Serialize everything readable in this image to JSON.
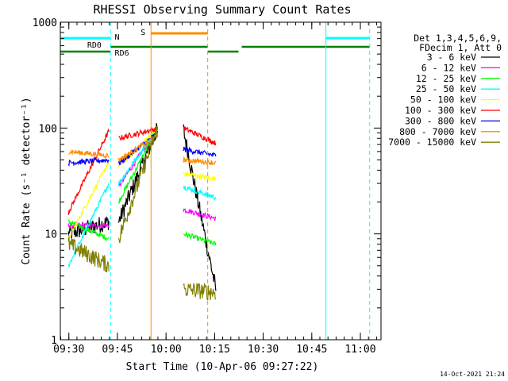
{
  "chart_data": {
    "type": "line",
    "title": "RHESSI Observing Summary Count Rates",
    "xlabel": "Start Time (10-Apr-06 09:27:22)",
    "ylabel": "Count Rate (s⁻¹ detector⁻¹)",
    "yscale": "log",
    "ylim": [
      1,
      1000
    ],
    "xlim_minutes": [
      0,
      99
    ],
    "x_ticks": [
      "09:30",
      "09:45",
      "10:00",
      "10:15",
      "10:30",
      "10:45",
      "11:00"
    ],
    "y_ticks": [
      "1",
      "10",
      "100",
      "1000"
    ],
    "legend_header": [
      "Det 1,3,4,5,6,9,",
      "FDecim 1, Att 0"
    ],
    "legend_position": "right",
    "footer_date": "14-Oct-2021 21:24",
    "series": [
      {
        "name": "3 - 6 keV",
        "color": "#000000",
        "points": [
          [
            2.5,
            10
          ],
          [
            15,
            13
          ],
          [
            18,
            13
          ],
          [
            30,
            99
          ],
          [
            38,
            96
          ],
          [
            48,
            3
          ]
        ]
      },
      {
        "name": "6 - 12 keV",
        "color": "#ff00ff",
        "points": [
          [
            2.5,
            12
          ],
          [
            15,
            12
          ],
          [
            18,
            28
          ],
          [
            30,
            99
          ],
          [
            38,
            17
          ],
          [
            48,
            14
          ]
        ]
      },
      {
        "name": "12 - 25 keV",
        "color": "#00ff00",
        "points": [
          [
            2.5,
            13
          ],
          [
            15,
            9
          ],
          [
            18,
            20
          ],
          [
            30,
            99
          ],
          [
            38,
            10
          ],
          [
            48,
            8
          ]
        ]
      },
      {
        "name": "25 - 50 keV",
        "color": "#00ffff",
        "points": [
          [
            2.5,
            5
          ],
          [
            15,
            30
          ],
          [
            18,
            30
          ],
          [
            30,
            99
          ],
          [
            38,
            28
          ],
          [
            48,
            22
          ]
        ]
      },
      {
        "name": "50 - 100 keV",
        "color": "#ffff00",
        "points": [
          [
            2.5,
            9
          ],
          [
            15,
            48
          ],
          [
            18,
            43
          ],
          [
            30,
            99
          ],
          [
            38,
            37
          ],
          [
            48,
            33
          ]
        ]
      },
      {
        "name": "100 - 300 keV",
        "color": "#ff0000",
        "points": [
          [
            2.5,
            16
          ],
          [
            15,
            94
          ],
          [
            18,
            80
          ],
          [
            30,
            99
          ],
          [
            38,
            100
          ],
          [
            48,
            72
          ]
        ]
      },
      {
        "name": "300 - 800 keV",
        "color": "#0000ff",
        "points": [
          [
            2.5,
            47
          ],
          [
            15,
            50
          ],
          [
            18,
            46
          ],
          [
            30,
            90
          ],
          [
            38,
            63
          ],
          [
            48,
            55
          ]
        ]
      },
      {
        "name": "800 - 7000 keV",
        "color": "#ff8c00",
        "points": [
          [
            2.5,
            60
          ],
          [
            15,
            55
          ],
          [
            18,
            50
          ],
          [
            30,
            84
          ],
          [
            38,
            50
          ],
          [
            48,
            47
          ]
        ]
      },
      {
        "name": "7000 - 15000 keV",
        "color": "#808000",
        "points": [
          [
            2.5,
            8
          ],
          [
            15,
            5
          ],
          [
            18,
            9
          ],
          [
            30,
            99
          ],
          [
            38,
            3
          ],
          [
            48,
            2.8
          ]
        ]
      }
    ],
    "annotations": [
      "N",
      "S",
      "RD0",
      "RD6"
    ]
  }
}
